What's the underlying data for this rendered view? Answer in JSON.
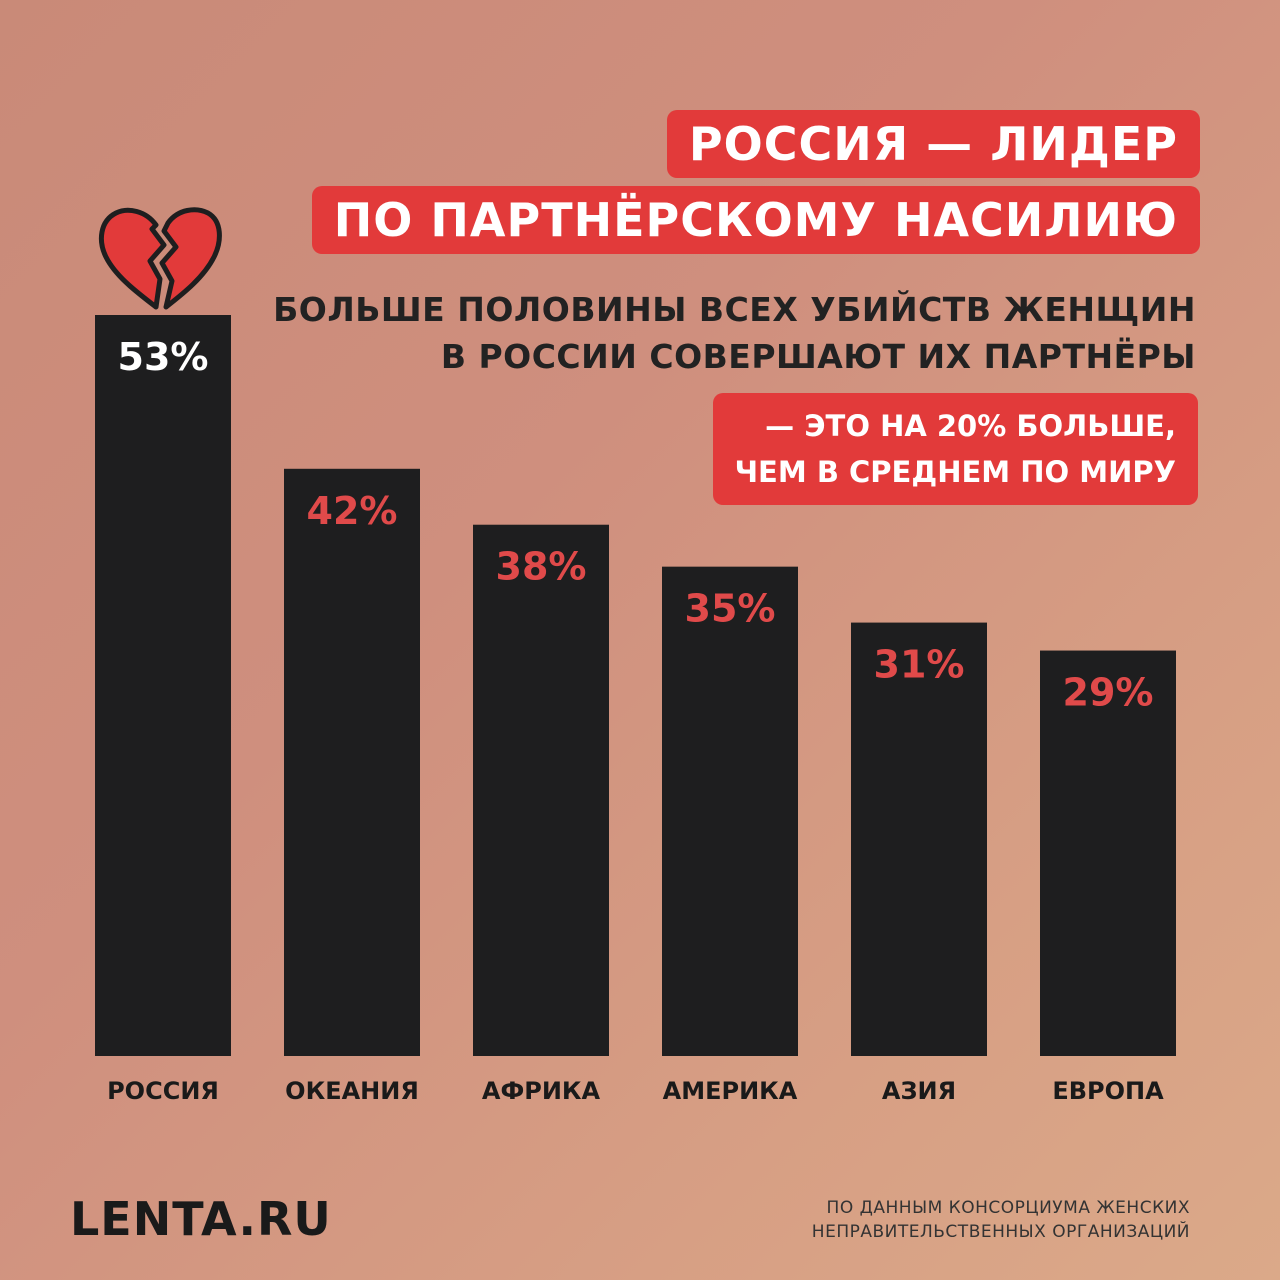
{
  "header": {
    "title_line1": "РОССИЯ — ЛИДЕР",
    "title_line2": "ПО ПАРТНЁРСКОМУ НАСИЛИЮ",
    "subtitle_line1": "БОЛЬШЕ ПОЛОВИНЫ ВСЕХ УБИЙСТВ ЖЕНЩИН",
    "subtitle_line2": "В РОССИИ СОВЕРШАЮТ ИХ ПАРТНЁРЫ",
    "highlight_line1": "— ЭТО НА 20% БОЛЬШЕ,",
    "highlight_line2": "ЧЕМ В СРЕДНЕМ ПО МИРУ"
  },
  "chart_data": {
    "type": "bar",
    "categories": [
      "РОССИЯ",
      "ОКЕАНИЯ",
      "АФРИКА",
      "АМЕРИКА",
      "АЗИЯ",
      "ЕВРОПА"
    ],
    "values": [
      53,
      42,
      38,
      35,
      31,
      29
    ],
    "value_labels": [
      "53%",
      "42%",
      "38%",
      "35%",
      "31%",
      "29%"
    ],
    "ylim": [
      0,
      53
    ],
    "title": "",
    "xlabel": "",
    "ylabel": "",
    "grid": false,
    "colors": {
      "bar": "#1e1e1f",
      "highlight_label": "#ffffff",
      "label": "#e04a4a",
      "category": "#1a1a1a"
    }
  },
  "icons": {
    "heart": "broken-heart-icon"
  },
  "footer": {
    "logo": "LENTA.RU",
    "source_line1": "ПО ДАННЫМ КОНСОРЦИУМА ЖЕНСКИХ",
    "source_line2": "НЕПРАВИТЕЛЬСТВЕННЫХ ОРГАНИЗАЦИЙ"
  },
  "colors": {
    "accent": "#e23a3a",
    "text_dark": "#1a1a1a"
  }
}
